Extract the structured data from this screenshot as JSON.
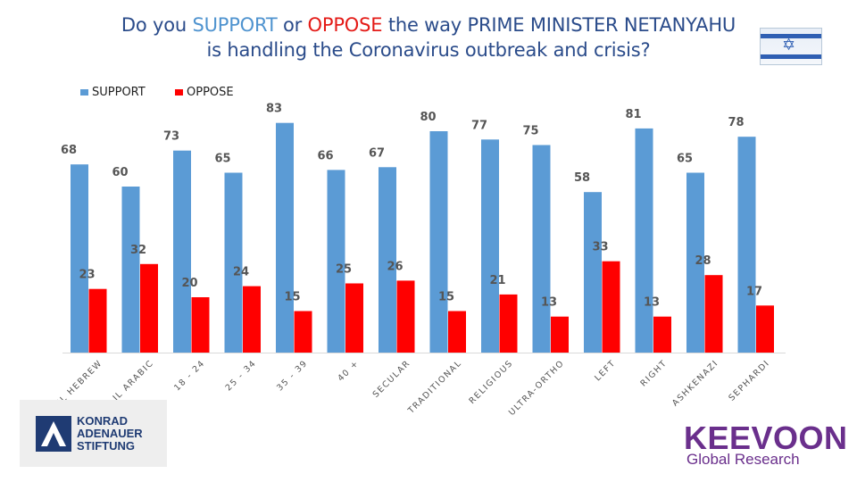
{
  "title": {
    "line1_prefix": "Do you ",
    "line1_support": "SUPPORT",
    "line1_mid": " or ",
    "line1_oppose": "OPPOSE",
    "line1_suffix": " the way PRIME MINISTER NETANYAHU",
    "line2": "is handling the Coronavirus outbreak and crisis?"
  },
  "flag_icon": "israeli-flag-icon",
  "colors": {
    "support": "#5b9bd5",
    "oppose": "#ff0000",
    "title": "#2a4b8a",
    "brand_kee": "#6a2f8c",
    "brand_kas": "#1f3b73"
  },
  "chart_data": {
    "type": "bar",
    "title": "Do you SUPPORT or OPPOSE the way PRIME MINISTER NETANYAHU is handling the Coronavirus outbreak and crisis?",
    "categories": [
      "IL HEBREW",
      "IL ARABIC",
      "18 - 24",
      "25 - 34",
      "35 - 39",
      "40 +",
      "SECULAR",
      "TRADITIONAL",
      "RELIGIOUS",
      "ULTRA-ORTHO",
      "LEFT",
      "RIGHT",
      "ASHKENAZI",
      "SEPHARDI"
    ],
    "series": [
      {
        "name": "SUPPORT",
        "values": [
          68,
          60,
          73,
          65,
          83,
          66,
          67,
          80,
          77,
          75,
          58,
          81,
          65,
          78
        ]
      },
      {
        "name": "OPPOSE",
        "values": [
          23,
          32,
          20,
          24,
          15,
          25,
          26,
          15,
          21,
          13,
          33,
          13,
          28,
          17
        ]
      }
    ],
    "xlabel": "",
    "ylabel": "",
    "ylim": [
      0,
      100
    ],
    "grid": false,
    "legend": "top-left"
  },
  "logos": {
    "kas_line1": "KONRAD",
    "kas_line2": "ADENAUER",
    "kas_line3": "STIFTUNG",
    "kee_name": "KEEVOON",
    "kee_sub": "Global Research"
  }
}
